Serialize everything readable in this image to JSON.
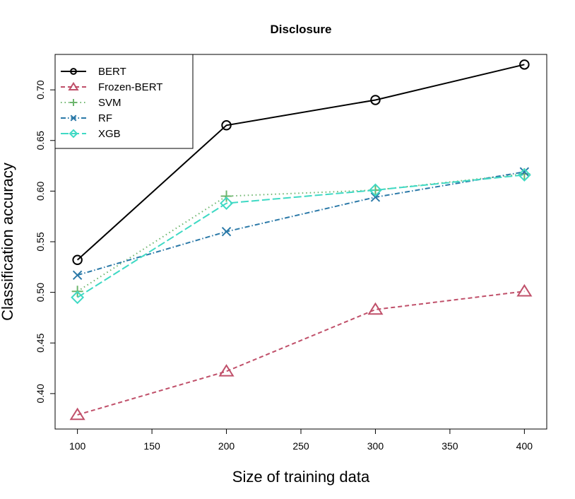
{
  "chart_data": {
    "type": "line",
    "title": "Disclosure",
    "xlabel": "Size of training data",
    "ylabel": "Classification accuracy",
    "xlim": [
      85,
      415
    ],
    "ylim": [
      0.365,
      0.735
    ],
    "xticks": [
      100,
      150,
      200,
      250,
      300,
      350,
      400
    ],
    "yticks": [
      0.4,
      0.45,
      0.5,
      0.55,
      0.6,
      0.65,
      0.7
    ],
    "ytick_labels": [
      "0.40",
      "0.45",
      "0.50",
      "0.55",
      "0.60",
      "0.65",
      "0.70"
    ],
    "x": [
      100,
      200,
      300,
      400
    ],
    "legend_position": "top-left",
    "grid": false,
    "series": [
      {
        "name": "BERT",
        "values": [
          0.532,
          0.665,
          0.69,
          0.725
        ],
        "color": "#000000",
        "marker": "circle",
        "dash": ""
      },
      {
        "name": "Frozen-BERT",
        "values": [
          0.379,
          0.422,
          0.483,
          0.501
        ],
        "color": "#c0506a",
        "marker": "triangle",
        "dash": "6,4"
      },
      {
        "name": "SVM",
        "values": [
          0.501,
          0.595,
          0.601,
          0.617
        ],
        "color": "#6db56d",
        "marker": "plus",
        "dash": "1.5,4"
      },
      {
        "name": "RF",
        "values": [
          0.517,
          0.56,
          0.594,
          0.619
        ],
        "color": "#2b79a8",
        "marker": "x",
        "dash": "7,3,1.5,3"
      },
      {
        "name": "XGB",
        "values": [
          0.495,
          0.588,
          0.601,
          0.616
        ],
        "color": "#3fd9c4",
        "marker": "diamond",
        "dash": "11,4"
      }
    ]
  }
}
